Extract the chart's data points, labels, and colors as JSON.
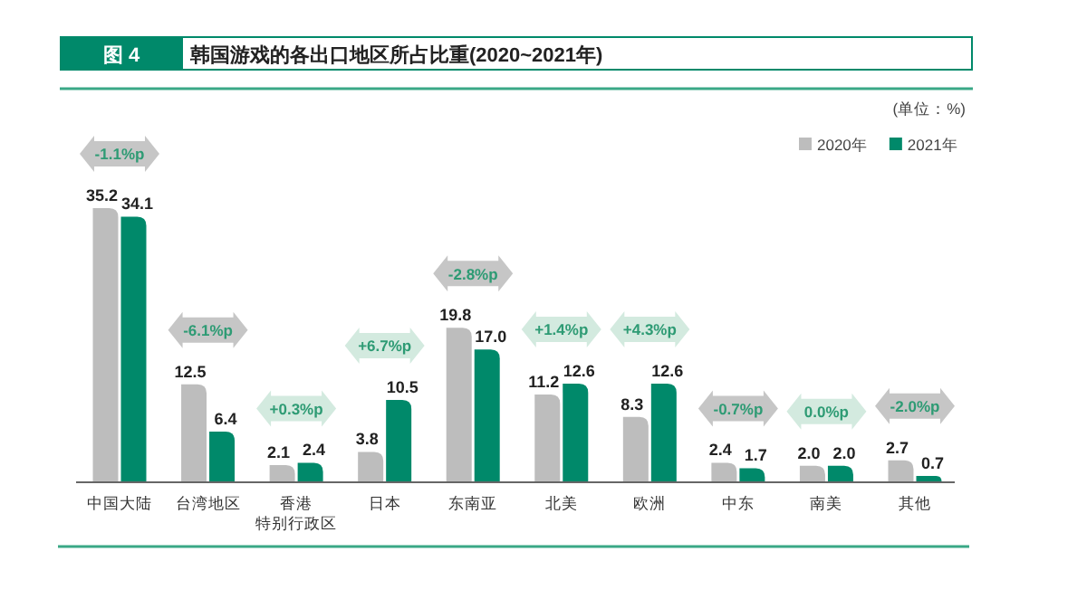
{
  "chart_data": {
    "type": "bar",
    "title": "韩国游戏的各出口地区所占比重(2020~2021年)",
    "categories": [
      "中国大陆",
      "台湾地区",
      "香港特别行政区",
      "日本",
      "东南亚",
      "北美",
      "欧洲",
      "中东",
      "南美",
      "其他"
    ],
    "series": [
      {
        "name": "2020年",
        "color": "#bdbdbd",
        "values": [
          35.2,
          12.5,
          2.1,
          3.8,
          19.8,
          11.2,
          8.3,
          2.4,
          2.0,
          2.7
        ],
        "value_labels": [
          "35.2",
          "12.5",
          "2.1",
          "3.8",
          "19.8",
          "11.2",
          "8.3",
          "2.4",
          "2.0",
          "2.7"
        ]
      },
      {
        "name": "2021年",
        "color": "#00896a",
        "values": [
          34.1,
          6.4,
          2.4,
          10.5,
          17.0,
          12.6,
          12.6,
          1.7,
          2.0,
          0.7
        ],
        "value_labels": [
          "34.1",
          "6.4",
          "2.4",
          "10.5",
          "17.0",
          "12.6",
          "12.6",
          "1.7",
          "2.0",
          "0.7"
        ]
      }
    ],
    "legend": "top right",
    "annotations": [
      "图 4",
      "(单位：%)",
      "-1.1%p",
      "-6.1%p",
      "+0.3%p",
      "+6.7%p",
      "-2.8%p",
      "+1.4%p",
      "+4.3%p",
      "-0.7%p",
      "0.0%p",
      "-2.0%p"
    ]
  }
}
